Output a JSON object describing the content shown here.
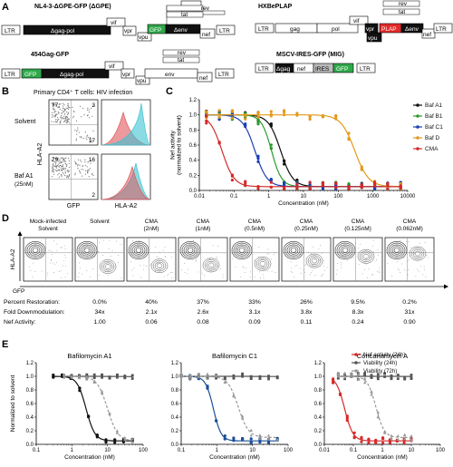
{
  "panels": {
    "A": "A",
    "B": "B",
    "C": "C",
    "D": "D",
    "E": "E"
  },
  "constructs": {
    "nl43": {
      "title": "NL4-3-ΔGPE-GFP (ΔGPE)",
      "ltr": "LTR",
      "gag": "Δgag-pol",
      "vif": "vif",
      "vpr": "vpr",
      "vpu": "vpu",
      "gfp": "GFP",
      "env": "Δenv",
      "nef": "nef",
      "rev": "rev",
      "tat": "tat"
    },
    "hxb": {
      "title": "HXBePLAP",
      "ltr": "LTR",
      "gag": "gag",
      "pol": "pol",
      "vif": "vif",
      "vpr": "vpr",
      "vpu": "vpu",
      "plap": "PLAP",
      "env": "Δenv",
      "nef": "nef",
      "rev": "rev",
      "tat": "tat"
    },
    "g454": {
      "title": "454Gag-GFP",
      "ltr": "LTR",
      "gfp": "GFP",
      "gag": "Δgag-pol",
      "vif": "vif",
      "vpr": "vpr",
      "vpu": "vpu",
      "env": "env",
      "nef": "nef",
      "rev": "rev",
      "tat": "tat"
    },
    "mig": {
      "title": "MSCV-IRES-GFP (MIG)",
      "ltr": "LTR",
      "gag": "Δgag",
      "nef": "nef",
      "ires": "IRES",
      "gfp": "GFP"
    }
  },
  "panelB": {
    "title": "Primary CD4⁺ T cells: HIV infection",
    "rows": [
      {
        "label": "Solvent",
        "q1": "77",
        "q2": "3",
        "q4": "17"
      },
      {
        "label": "Baf A1",
        "sub": "(25nM)",
        "q1": "79",
        "q2": "16",
        "q4": "2"
      }
    ],
    "xlabel": "GFP",
    "ylabel": "HLA-A2",
    "hist_xlabel": "HLA-A2",
    "colors": {
      "red": "#e0565b",
      "cyan": "#3cc3d2"
    }
  },
  "chart_data": [
    {
      "id": "C",
      "type": "scatter",
      "xlabel": "Concentration (nM)",
      "ylabel": "Nef activity\n(normalized to solvent)",
      "xscale": "log",
      "xlim": [
        0.01,
        10000
      ],
      "ylim": [
        0,
        1.2
      ],
      "xticks": [
        "0.01",
        "0.1",
        "1",
        "10",
        "100",
        "1000",
        "10000"
      ],
      "yticks": [
        "0.0",
        "0.2",
        "0.4",
        "0.6",
        "0.8",
        "1.0",
        "1.2"
      ],
      "legend_position": "right",
      "series": [
        {
          "name": "Baf A1",
          "color": "#111111",
          "marker": "circle",
          "ec50": 2.2,
          "hill": 2.5,
          "top": 1,
          "bottom": 0.05
        },
        {
          "name": "Baf B1",
          "color": "#2e9a2e",
          "marker": "circle",
          "ec50": 1.2,
          "hill": 3,
          "top": 1,
          "bottom": 0.05
        },
        {
          "name": "Baf C1",
          "color": "#1a3fb5",
          "marker": "circle",
          "ec50": 0.4,
          "hill": 2.5,
          "top": 1,
          "bottom": 0.05
        },
        {
          "name": "Baf D",
          "color": "#e39a1a",
          "marker": "circle",
          "ec50": 300,
          "hill": 2.2,
          "top": 1,
          "bottom": 0.05
        },
        {
          "name": "CMA",
          "color": "#d42a2a",
          "marker": "circle",
          "ec50": 0.045,
          "hill": 2.5,
          "top": 1,
          "bottom": 0.05
        }
      ]
    },
    {
      "id": "E1",
      "type": "scatter",
      "title": "Bafilomycin A1",
      "xscale": "log",
      "xlim": [
        0.1,
        100
      ],
      "ylim": [
        0,
        1.2
      ],
      "xlabel": "Concentration (nM)",
      "ylabel": "Normalized to solvent",
      "xticks": [
        "0.1",
        "1",
        "10",
        "100"
      ],
      "yticks": [
        "0.0",
        "0.2",
        "0.4",
        "0.6",
        "0.8",
        "1.0",
        "1.2"
      ],
      "series": [
        {
          "name": "Nef activity (24h)",
          "color": "#111111",
          "style": "solid",
          "ec50": 2.5,
          "hill": 3.5,
          "top": 1,
          "bottom": 0.05,
          "xmin": 0.3,
          "xmax": 50
        },
        {
          "name": "Viability (24h)",
          "color": "#555555",
          "style": "solid",
          "ec50": 1000,
          "hill": 1,
          "top": 1,
          "bottom": 0.9,
          "xmin": 0.6,
          "xmax": 50
        },
        {
          "name": "Viability (72h)",
          "color": "#999999",
          "style": "dashed",
          "ec50": 10,
          "hill": 3,
          "top": 1,
          "bottom": 0.05,
          "xmin": 0.6,
          "xmax": 50
        }
      ]
    },
    {
      "id": "E2",
      "type": "scatter",
      "title": "Bafilomycin C1",
      "xscale": "log",
      "xlim": [
        0.1,
        100
      ],
      "ylim": [
        0,
        1.2
      ],
      "xlabel": "Concentration (nM)",
      "xticks": [
        "0.1",
        "1",
        "10",
        "100"
      ],
      "yticks": [
        "0.0",
        "0.2",
        "0.4",
        "0.6",
        "0.8",
        "1.0",
        "1.2"
      ],
      "series": [
        {
          "name": "Nef activity (24h)",
          "color": "#1a4f9a",
          "style": "solid",
          "ec50": 0.8,
          "hill": 4,
          "top": 1,
          "bottom": 0.05,
          "xmin": 0.1,
          "xmax": 50
        },
        {
          "name": "Viability (24h)",
          "color": "#555555",
          "style": "solid",
          "ec50": 1000,
          "hill": 1,
          "top": 1,
          "bottom": 0.92,
          "xmin": 0.1,
          "xmax": 50
        },
        {
          "name": "Viability (72h)",
          "color": "#999999",
          "style": "dashed",
          "ec50": 4,
          "hill": 3,
          "top": 1,
          "bottom": 0.1,
          "xmin": 0.1,
          "xmax": 50
        }
      ]
    },
    {
      "id": "E3",
      "type": "scatter",
      "title": "Concanamycin A",
      "xscale": "log",
      "xlim": [
        0.01,
        100
      ],
      "ylim": [
        0,
        1.2
      ],
      "xlabel": "Concentration (nM)",
      "xticks": [
        "0.01",
        "0.1",
        "1",
        "10",
        "100"
      ],
      "yticks": [
        "0.0",
        "0.2",
        "0.4",
        "0.6",
        "0.8",
        "1.0",
        "1.2"
      ],
      "legend_position": "top-right",
      "series": [
        {
          "name": "Nef activity (24h)",
          "color": "#d42a2a",
          "style": "solid",
          "ec50": 0.05,
          "hill": 3,
          "top": 1,
          "bottom": 0.05,
          "xmin": 0.02,
          "xmax": 10
        },
        {
          "name": "Viability (24h)",
          "color": "#555555",
          "style": "solid",
          "ec50": 1000,
          "hill": 1,
          "top": 1,
          "bottom": 0.82,
          "xmin": 0.03,
          "xmax": 10
        },
        {
          "name": "Viability (72h)",
          "color": "#999999",
          "style": "dashed",
          "ec50": 0.6,
          "hill": 3,
          "top": 1,
          "bottom": 0.1,
          "xmin": 0.03,
          "xmax": 10
        }
      ]
    }
  ],
  "panelD": {
    "headers": [
      "Mock-infected\nSolvent",
      "Solvent",
      "CMA\n(2nM)",
      "CMA\n(1nM)",
      "CMA\n(0.5nM)",
      "CMA\n(0.25nM)",
      "CMA\n(0.125nM)",
      "CMA\n(0.062nM)"
    ],
    "ylabel": "HLA-A2",
    "xlabel": "GFP",
    "rows": [
      {
        "label": "Percent Restoration:",
        "values": [
          "0.0%",
          "40%",
          "37%",
          "33%",
          "26%",
          "9.5%",
          "0.2%"
        ]
      },
      {
        "label": "Fold Downmodulation:",
        "values": [
          "34x",
          "2.1x",
          "2.6x",
          "3.1x",
          "3.8x",
          "8.3x",
          "31x"
        ]
      },
      {
        "label": "Nef Activity:",
        "values": [
          "1.00",
          "0.06",
          "0.08",
          "0.09",
          "0.11",
          "0.24",
          "0.90"
        ]
      }
    ]
  }
}
